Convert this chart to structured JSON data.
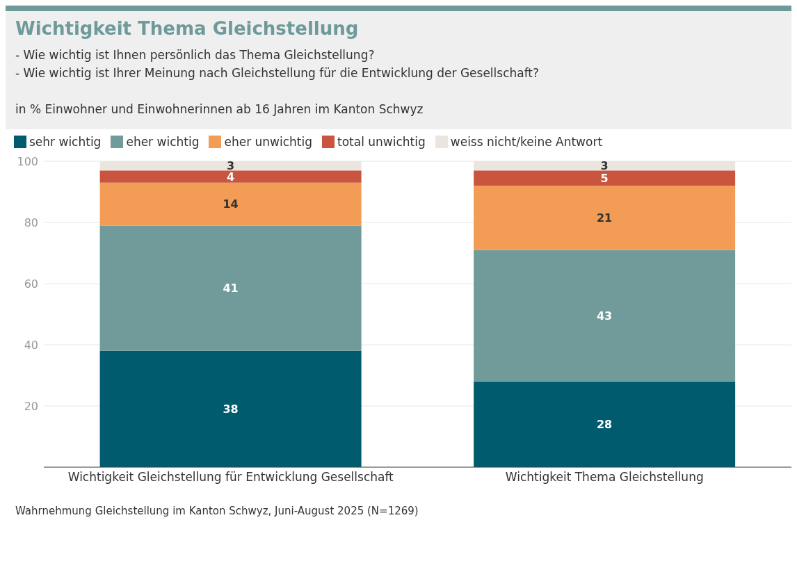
{
  "chart_data": {
    "type": "bar",
    "title": "Wichtigkeit Thema Gleichstellung",
    "subtitle": "- Wie wichtig ist Ihnen persönlich das Thema Gleichstellung?\n- Wie wichtig ist Ihrer Meinung nach Gleichstellung für die Entwicklung der Gesellschaft?\n\nin % Einwohner und Einwohnerinnen ab 16 Jahren im Kanton Schwyz",
    "categories": [
      "Wichtigkeit Gleichstellung für Entwicklung Gesellschaft",
      "Wichtigkeit Thema Gleichstellung"
    ],
    "series": [
      {
        "name": "sehr wichtig",
        "color": "#005b6e",
        "values": [
          38,
          28
        ]
      },
      {
        "name": "eher wichtig",
        "color": "#709b9a",
        "values": [
          41,
          43
        ]
      },
      {
        "name": "eher unwichtig",
        "color": "#f39c55",
        "values": [
          14,
          21
        ]
      },
      {
        "name": "total unwichtig",
        "color": "#c9553f",
        "values": [
          4,
          5
        ]
      },
      {
        "name": "weiss nicht/keine Antwort",
        "color": "#ebe5e0",
        "values": [
          3,
          3
        ]
      }
    ],
    "stacked": true,
    "data_labels": true,
    "ylim": [
      0,
      100
    ],
    "yticks": [
      20,
      40,
      60,
      80,
      100
    ],
    "grid": "y",
    "legend": "top",
    "annotations": [
      "Wahrnehmung Gleichstellung im Kanton Schwyz, Juni-August 2025 (N=1269)"
    ]
  }
}
